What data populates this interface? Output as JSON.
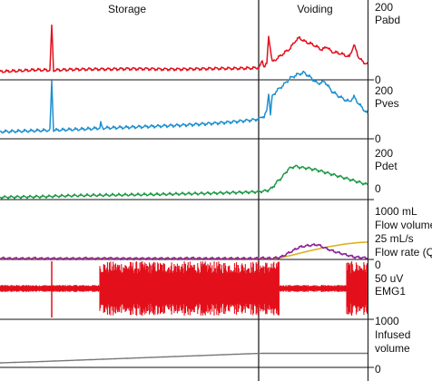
{
  "chart_data": {
    "type": "line",
    "title": "",
    "sections": [
      {
        "name": "Storage"
      },
      {
        "name": "Voiding"
      }
    ],
    "channels": [
      {
        "id": "pabd",
        "name": "Pabd",
        "top_label": "200",
        "bottom_label": "0",
        "ylim": [
          0,
          200
        ],
        "color": "#e3101c",
        "series": [
          {
            "name": "Pabd",
            "color": "#e3101c",
            "points": [
              [
                0,
                8
              ],
              [
                20,
                10
              ],
              [
                40,
                13
              ],
              [
                55,
                12
              ],
              [
                57,
                140
              ],
              [
                59,
                12
              ],
              [
                80,
                14
              ],
              [
                100,
                15
              ],
              [
                120,
                15
              ],
              [
                140,
                16
              ],
              [
                160,
                16
              ],
              [
                180,
                15
              ],
              [
                200,
                15
              ],
              [
                220,
                16
              ],
              [
                240,
                17
              ],
              [
                260,
                17
              ],
              [
                280,
                18
              ],
              [
                286,
                20
              ],
              [
                289,
                40
              ],
              [
                291,
                22
              ],
              [
                294,
                30
              ],
              [
                296,
                110
              ],
              [
                300,
                35
              ],
              [
                310,
                55
              ],
              [
                320,
                75
              ],
              [
                325,
                95
              ],
              [
                330,
                105
              ],
              [
                335,
                95
              ],
              [
                345,
                85
              ],
              [
                355,
                70
              ],
              [
                360,
                80
              ],
              [
                365,
                65
              ],
              [
                375,
                60
              ],
              [
                385,
                50
              ],
              [
                390,
                85
              ],
              [
                395,
                50
              ],
              [
                400,
                35
              ],
              [
                405,
                30
              ]
            ]
          }
        ]
      },
      {
        "id": "pves",
        "name": "Pves",
        "top_label": "200",
        "bottom_label": "0",
        "ylim": [
          0,
          200
        ],
        "color": "#1d8fd0",
        "series": [
          {
            "name": "Pves",
            "color": "#1d8fd0",
            "points": [
              [
                0,
                12
              ],
              [
                30,
                14
              ],
              [
                55,
                16
              ],
              [
                57,
                150
              ],
              [
                59,
                16
              ],
              [
                80,
                18
              ],
              [
                100,
                20
              ],
              [
                110,
                22
              ],
              [
                111,
                35
              ],
              [
                113,
                22
              ],
              [
                140,
                24
              ],
              [
                160,
                26
              ],
              [
                180,
                28
              ],
              [
                200,
                30
              ],
              [
                220,
                33
              ],
              [
                240,
                36
              ],
              [
                260,
                40
              ],
              [
                280,
                45
              ],
              [
                286,
                48
              ],
              [
                289,
                55
              ],
              [
                291,
                52
              ],
              [
                294,
                70
              ],
              [
                296,
                120
              ],
              [
                298,
                60
              ],
              [
                300,
                110
              ],
              [
                305,
                125
              ],
              [
                312,
                140
              ],
              [
                320,
                160
              ],
              [
                328,
                170
              ],
              [
                335,
                175
              ],
              [
                342,
                162
              ],
              [
                350,
                145
              ],
              [
                358,
                150
              ],
              [
                365,
                125
              ],
              [
                372,
                112
              ],
              [
                380,
                100
              ],
              [
                385,
                95
              ],
              [
                390,
                108
              ],
              [
                395,
                90
              ],
              [
                400,
                75
              ],
              [
                405,
                62
              ]
            ]
          }
        ]
      },
      {
        "id": "pdet",
        "name": "Pdet",
        "top_label": "200",
        "bottom_label": "0",
        "ylim": [
          0,
          200
        ],
        "color": "#1c9a45",
        "series": [
          {
            "name": "Pdet",
            "color": "#1c9a45",
            "points": [
              [
                0,
                2
              ],
              [
                20,
                3
              ],
              [
                40,
                4
              ],
              [
                55,
                5
              ],
              [
                60,
                6
              ],
              [
                80,
                8
              ],
              [
                100,
                9
              ],
              [
                120,
                10
              ],
              [
                140,
                11
              ],
              [
                160,
                12
              ],
              [
                180,
                13
              ],
              [
                200,
                15
              ],
              [
                220,
                16
              ],
              [
                240,
                18
              ],
              [
                260,
                20
              ],
              [
                280,
                22
              ],
              [
                290,
                25
              ],
              [
                295,
                28
              ],
              [
                300,
                38
              ],
              [
                305,
                60
              ],
              [
                310,
                75
              ],
              [
                318,
                110
              ],
              [
                325,
                120
              ],
              [
                332,
                115
              ],
              [
                340,
                112
              ],
              [
                350,
                105
              ],
              [
                360,
                95
              ],
              [
                370,
                85
              ],
              [
                380,
                75
              ],
              [
                390,
                65
              ],
              [
                400,
                55
              ],
              [
                405,
                50
              ]
            ]
          }
        ]
      },
      {
        "id": "flow",
        "name": "Flow volume / Flow rate (Q)",
        "labels": [
          "1000 mL",
          "Flow volume",
          "25 mL/s",
          "Flow rate (Q)"
        ],
        "bottom_label": "0",
        "series": [
          {
            "name": "Flow volume",
            "color": "#dcb022",
            "points": [
              [
                0,
                0
              ],
              [
                305,
                0
              ],
              [
                320,
                60
              ],
              [
                340,
                150
              ],
              [
                360,
                230
              ],
              [
                380,
                290
              ],
              [
                395,
                320
              ],
              [
                405,
                330
              ]
            ]
          },
          {
            "name": "Flow rate (Q)",
            "color": "#8a259b",
            "points": [
              [
                0,
                0
              ],
              [
                5,
                0.2
              ],
              [
                10,
                0
              ],
              [
                35,
                0
              ],
              [
                38,
                0.3
              ],
              [
                41,
                0
              ],
              [
                90,
                0
              ],
              [
                95,
                0.3
              ],
              [
                100,
                0
              ],
              [
                110,
                0
              ],
              [
                120,
                0.2
              ],
              [
                130,
                0
              ],
              [
                200,
                0
              ],
              [
                210,
                0.2
              ],
              [
                220,
                0
              ],
              [
                282,
                0
              ],
              [
                290,
                0.3
              ],
              [
                300,
                0
              ],
              [
                310,
                1
              ],
              [
                320,
                4
              ],
              [
                330,
                7
              ],
              [
                340,
                8
              ],
              [
                350,
                8.5
              ],
              [
                360,
                6
              ],
              [
                370,
                4
              ],
              [
                380,
                2.5
              ],
              [
                390,
                1
              ],
              [
                400,
                0.5
              ],
              [
                405,
                0.3
              ]
            ]
          }
        ]
      },
      {
        "id": "emg",
        "name": "EMG1",
        "top_label": "50 uV",
        "color": "#e3101c",
        "baseline_color": "#dcb022",
        "segments": [
          {
            "x": [
              0,
              110
            ],
            "amplitude": "low"
          },
          {
            "x": [
              110,
              308
            ],
            "amplitude": "high"
          },
          {
            "x": [
              308,
              382
            ],
            "amplitude": "low"
          },
          {
            "x": [
              382,
              405
            ],
            "amplitude": "high"
          }
        ]
      },
      {
        "id": "infused",
        "name": "Infused volume",
        "labels": [
          "1000",
          "Infused",
          "volume"
        ],
        "bottom_label": "0",
        "series": [
          {
            "name": "Infused volume",
            "color": "#777777",
            "points": [
              [
                0,
                0
              ],
              [
                40,
                25
              ],
              [
                80,
                55
              ],
              [
                120,
                85
              ],
              [
                160,
                115
              ],
              [
                200,
                145
              ],
              [
                240,
                175
              ],
              [
                280,
                205
              ],
              [
                290,
                210
              ],
              [
                320,
                210
              ],
              [
                360,
                210
              ],
              [
                405,
                210
              ]
            ]
          }
        ]
      }
    ]
  }
}
